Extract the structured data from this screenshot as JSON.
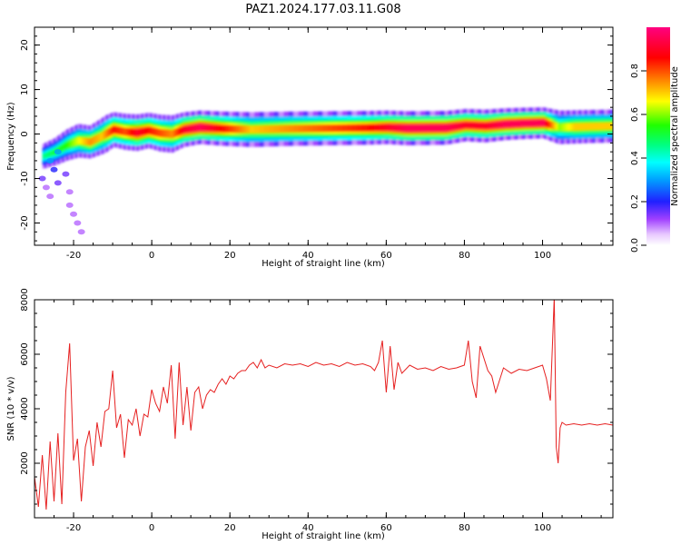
{
  "figure": {
    "title": "PAZ1.2024.177.03.11.G08"
  },
  "colors": {
    "snr_line": "#e62020",
    "axis": "#000000"
  },
  "chart_data": [
    {
      "type": "heatmap",
      "title": "",
      "xlabel": "Height of straight line (km)",
      "ylabel": "Frequency (Hz)",
      "xlim": [
        -30,
        118
      ],
      "ylim": [
        -25,
        24
      ],
      "x_ticks": [
        -20,
        0,
        20,
        40,
        60,
        80,
        100
      ],
      "y_ticks": [
        -20,
        -10,
        0,
        10,
        20
      ],
      "colorbar": {
        "label": "Normalized spectral amplitude",
        "range": [
          0,
          1
        ],
        "ticks": [
          0.0,
          0.2,
          0.4,
          0.6,
          0.8
        ],
        "colormap": "gist_rainbow_r"
      },
      "ridge": {
        "x": [
          -28,
          -25,
          -22,
          -19,
          -16,
          -13,
          -10,
          -7,
          -4,
          -1,
          2,
          5,
          8,
          12,
          18,
          25,
          35,
          45,
          55,
          60,
          65,
          75,
          80,
          85,
          90,
          95,
          100,
          104,
          108,
          112,
          118
        ],
        "frequency": [
          -5,
          -4,
          -2.5,
          -1.5,
          -1.8,
          -0.5,
          1,
          0.5,
          0.3,
          0.8,
          0.2,
          0,
          1,
          1.5,
          1.2,
          1.0,
          1.2,
          1.3,
          1.4,
          1.5,
          1.3,
          1.4,
          2.0,
          1.8,
          2.2,
          2.4,
          2.5,
          1.5,
          1.6,
          1.7,
          1.8
        ],
        "amplitude": [
          0.45,
          0.5,
          0.55,
          0.65,
          0.75,
          0.7,
          0.85,
          0.8,
          0.9,
          0.85,
          0.8,
          0.75,
          0.9,
          0.95,
          0.85,
          0.7,
          0.75,
          0.8,
          0.85,
          0.9,
          0.95,
          0.95,
          0.9,
          0.9,
          0.95,
          0.95,
          0.95,
          0.6,
          0.7,
          0.7,
          0.7
        ]
      },
      "scatter_low": {
        "x": [
          -28,
          -27,
          -26,
          -25,
          -24,
          -22,
          -21,
          -20,
          -19,
          -18,
          -26,
          -24,
          -21
        ],
        "frequency": [
          -10,
          -12,
          -14,
          -8,
          -11,
          -9,
          -13,
          -18,
          -20,
          -22,
          -6,
          -4,
          -16
        ],
        "amplitude": [
          0.15,
          0.1,
          0.1,
          0.2,
          0.15,
          0.15,
          0.1,
          0.1,
          0.1,
          0.1,
          0.3,
          0.3,
          0.1
        ]
      }
    },
    {
      "type": "line",
      "title": "",
      "xlabel": "Height of straight line (km)",
      "ylabel": "SNR (10 * v/v)",
      "xlim": [
        -30,
        118
      ],
      "ylim": [
        0,
        8000
      ],
      "x_ticks": [
        -20,
        0,
        20,
        40,
        60,
        80,
        100
      ],
      "y_ticks": [
        2000,
        4000,
        6000,
        8000
      ],
      "series": [
        {
          "x": [
            -30,
            -29,
            -28,
            -27,
            -26,
            -25,
            -24,
            -23,
            -22,
            -21,
            -20,
            -19,
            -18,
            -17,
            -16,
            -15,
            -14,
            -13,
            -12,
            -11,
            -10,
            -9,
            -8,
            -7,
            -6,
            -5,
            -4,
            -3,
            -2,
            -1,
            0,
            1,
            2,
            3,
            4,
            5,
            6,
            7,
            8,
            9,
            10,
            11,
            12,
            13,
            14,
            15,
            16,
            17,
            18,
            19,
            20,
            21,
            22,
            23,
            24,
            25,
            26,
            27,
            28,
            29,
            30,
            32,
            34,
            36,
            38,
            40,
            42,
            44,
            46,
            48,
            50,
            52,
            54,
            56,
            57,
            58,
            59,
            60,
            61,
            62,
            63,
            64,
            66,
            68,
            70,
            72,
            74,
            76,
            78,
            80,
            81,
            82,
            83,
            84,
            86,
            87,
            88,
            90,
            92,
            94,
            96,
            98,
            100,
            101,
            102,
            103,
            103.5,
            104,
            104.5,
            105,
            106,
            108,
            110,
            112,
            114,
            116,
            118
          ],
          "values": [
            1500,
            400,
            2300,
            300,
            2800,
            600,
            3100,
            500,
            4600,
            6400,
            2100,
            2900,
            600,
            2600,
            3200,
            1900,
            3500,
            2600,
            3900,
            4000,
            5400,
            3300,
            3800,
            2200,
            3600,
            3400,
            4000,
            3000,
            3800,
            3700,
            4700,
            4200,
            3900,
            4800,
            4200,
            5600,
            2900,
            5700,
            3400,
            4800,
            3200,
            4600,
            4800,
            4000,
            4500,
            4700,
            4600,
            4900,
            5100,
            4900,
            5200,
            5100,
            5300,
            5400,
            5400,
            5600,
            5700,
            5500,
            5800,
            5500,
            5600,
            5500,
            5650,
            5600,
            5650,
            5550,
            5700,
            5600,
            5650,
            5550,
            5700,
            5600,
            5650,
            5550,
            5400,
            5700,
            6500,
            4600,
            6300,
            4700,
            5700,
            5300,
            5600,
            5450,
            5500,
            5400,
            5550,
            5450,
            5500,
            5600,
            6500,
            5000,
            4400,
            6300,
            5400,
            5200,
            4600,
            5500,
            5300,
            5450,
            5400,
            5500,
            5600,
            5100,
            4300,
            8100,
            2600,
            2000,
            3300,
            3500,
            3400,
            3450,
            3400,
            3450,
            3400,
            3450,
            3400
          ]
        }
      ]
    }
  ]
}
